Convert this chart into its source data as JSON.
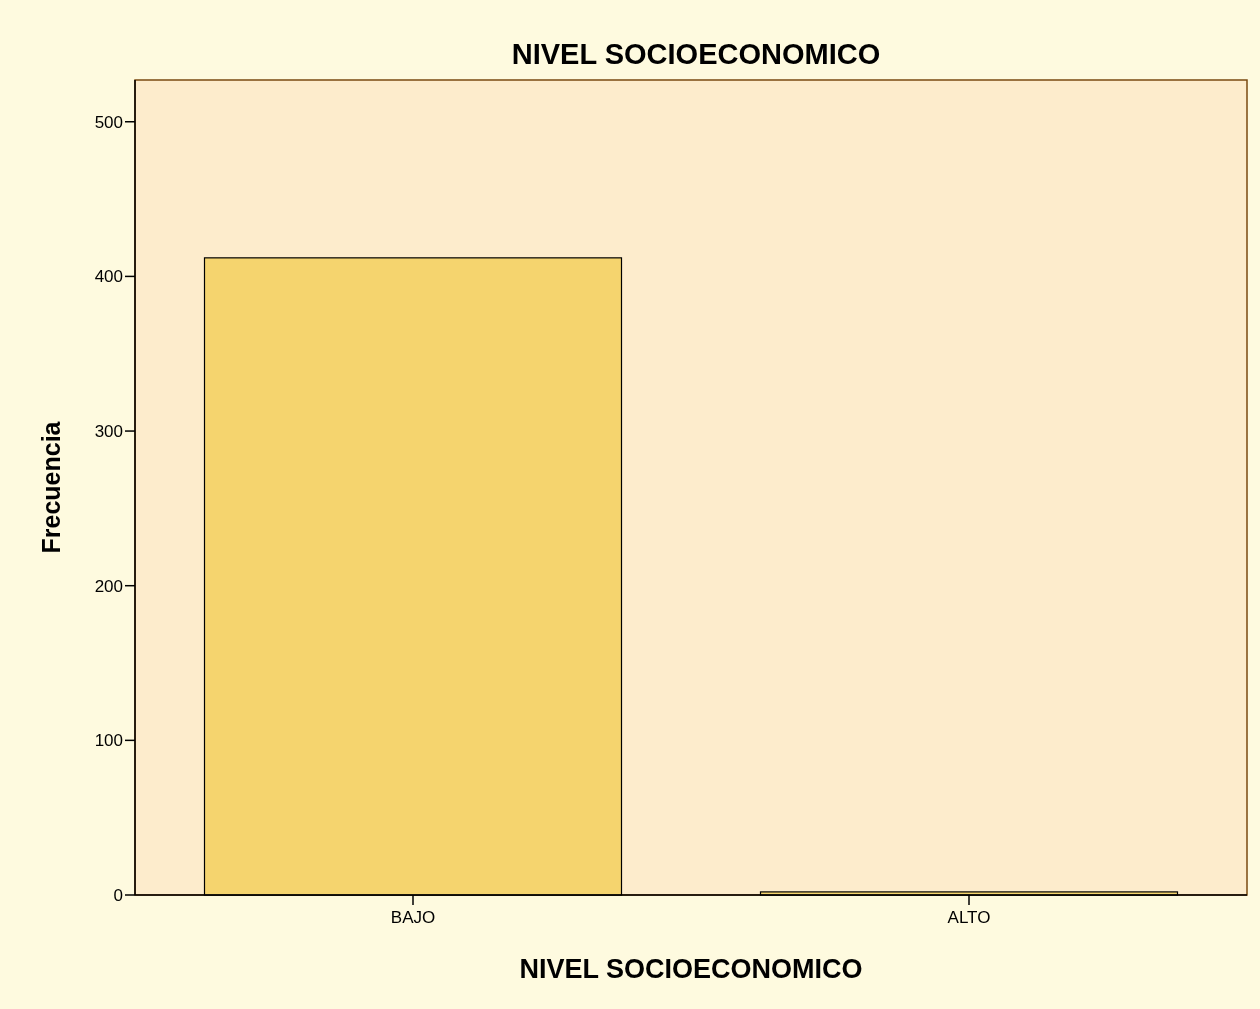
{
  "chart_data": {
    "type": "bar",
    "title": "NIVEL SOCIOECONOMICO",
    "xlabel": "NIVEL SOCIOECONOMICO",
    "ylabel": "Frecuencia",
    "categories": [
      "BAJO",
      "ALTO"
    ],
    "values": [
      412,
      2
    ],
    "color": "#f5d46e",
    "ylim": [
      0,
      527
    ],
    "yticks": [
      0,
      100,
      200,
      300,
      400,
      500
    ],
    "grid": false
  }
}
